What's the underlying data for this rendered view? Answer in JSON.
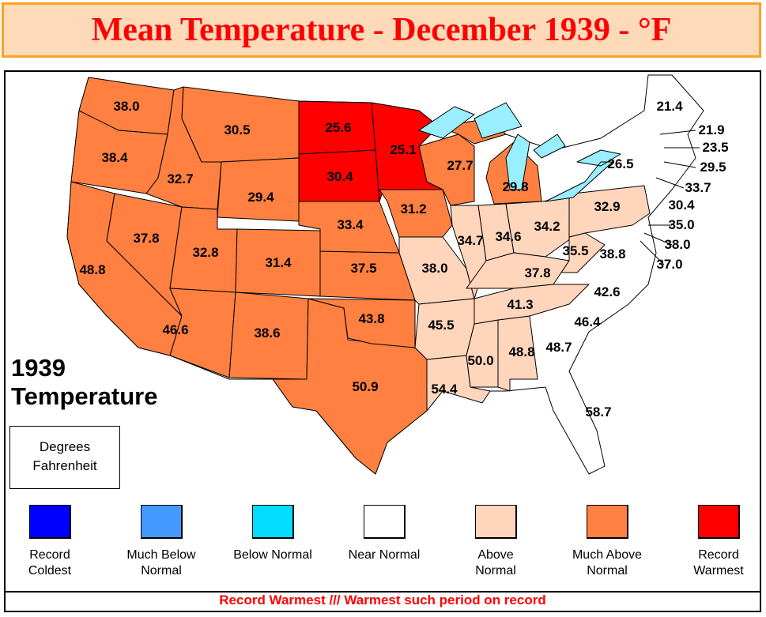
{
  "title": "Mean Temperature - December 1939 - °F",
  "year_label": "1939",
  "subtitle": "Temperature",
  "units": [
    "Degrees",
    "Fahrenheit"
  ],
  "colors": {
    "record_coldest": "#0000FF",
    "much_below": "#4499FF",
    "below": "#00DDFF",
    "near": "#FFFFFF",
    "above": "#FFD5BB",
    "much_above": "#FF8040",
    "record_warmest": "#FF0000",
    "water": "#99EEFF"
  },
  "legend": [
    {
      "label": "Record Coldest",
      "color": "#0000FF"
    },
    {
      "label": "Much Below Normal",
      "color": "#4499FF"
    },
    {
      "label": "Below Normal",
      "color": "#00DDFF"
    },
    {
      "label": "Near Normal",
      "color": "#FFFFFF"
    },
    {
      "label": "Above Normal",
      "color": "#FFD5BB"
    },
    {
      "label": "Much Above Normal",
      "color": "#FF8040"
    },
    {
      "label": "Record Warmest",
      "color": "#FF0000"
    }
  ],
  "footer": "Record Warmest /// Warmest such period on record",
  "states": {
    "WA": "38.0",
    "OR": "38.4",
    "ID": "32.7",
    "MT": "30.5",
    "ND": "25.6",
    "MN": "25.1",
    "SD": "30.4",
    "WY": "29.4",
    "NE": "33.4",
    "IA": "31.2",
    "WI": "27.7",
    "MI": "29.8",
    "NY": "26.5",
    "PA": "32.9",
    "NV": "37.8",
    "UT": "32.8",
    "CO": "31.4",
    "KS": "37.5",
    "CA": "48.8",
    "MO": "38.0",
    "IL": "34.7",
    "IN": "34.6",
    "OH": "34.2",
    "WV": "35.5",
    "VA": "38.8",
    "KY": "37.8",
    "NC": "42.6",
    "TN": "41.3",
    "AZ": "46.6",
    "NM": "38.6",
    "OK": "43.8",
    "AR": "45.5",
    "SC": "46.4",
    "GA": "48.7",
    "AL": "48.8",
    "MS": "50.0",
    "LA": "54.4",
    "TX": "50.9",
    "FL": "58.7",
    "ME": "21.4",
    "NH": "21.9",
    "VT": "23.5",
    "MA": "29.5",
    "RI": "33.7",
    "CT": "30.4",
    "NJ": "35.0",
    "DE": "38.0",
    "MD": "37.0"
  }
}
